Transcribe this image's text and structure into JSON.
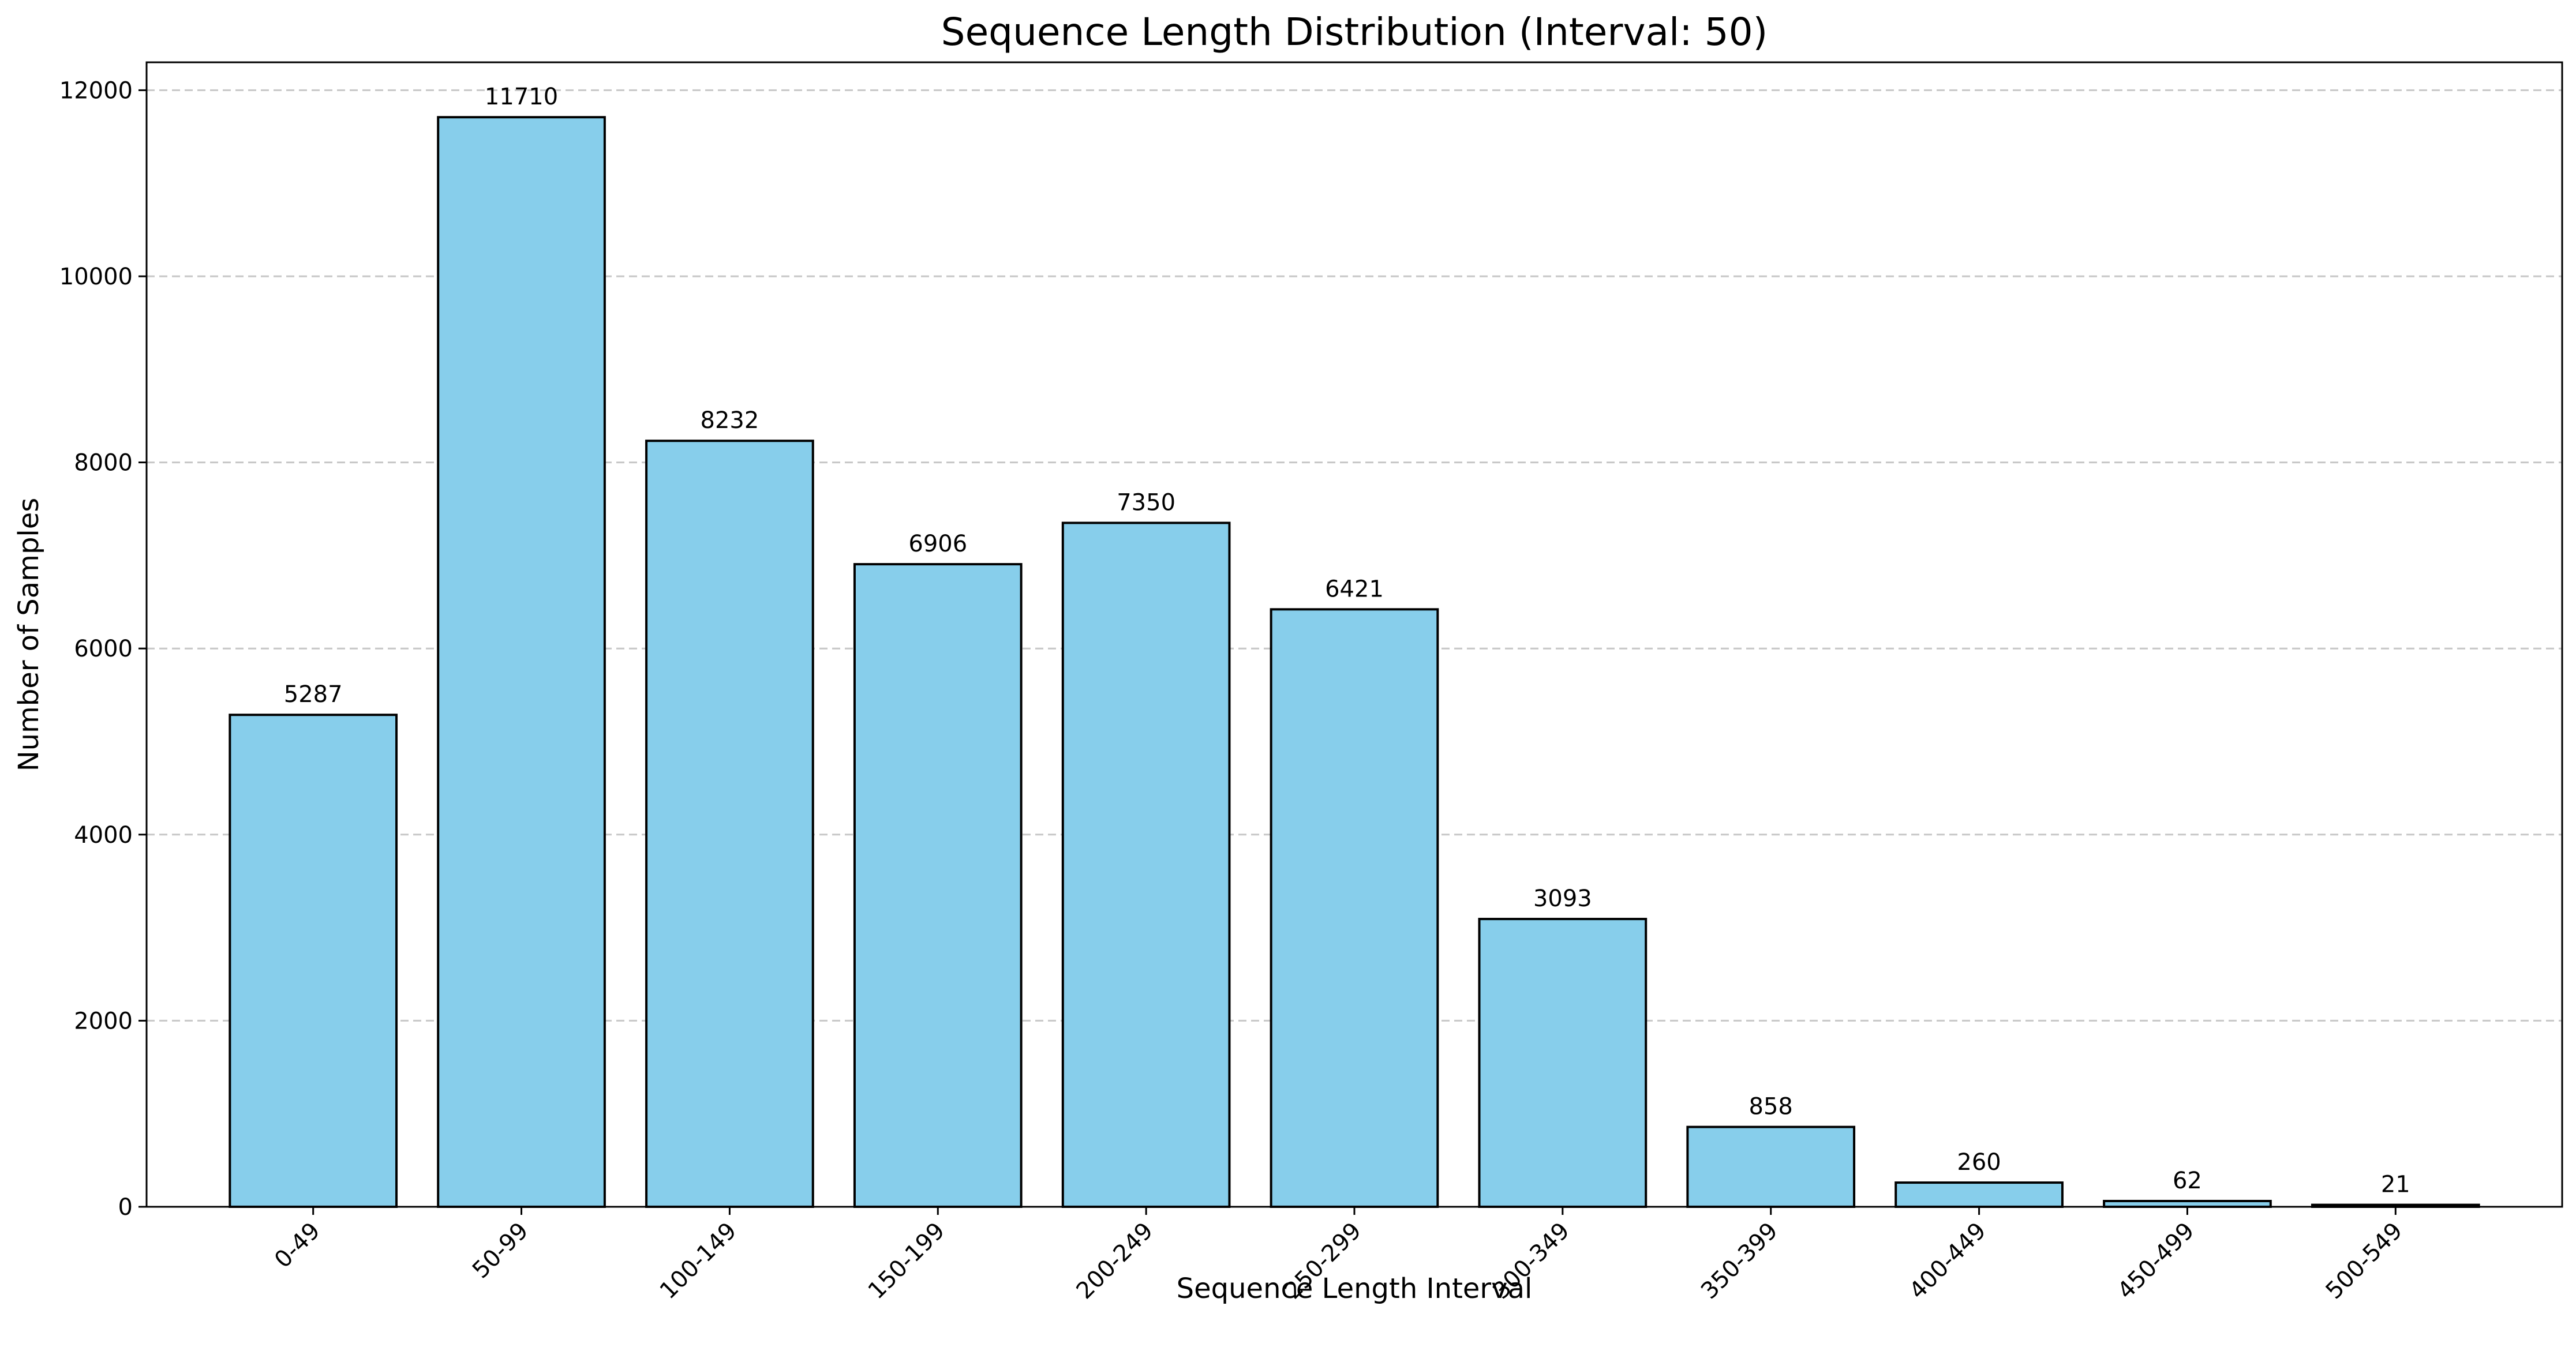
{
  "chart_data": {
    "type": "bar",
    "title": "Sequence Length Distribution (Interval: 50)",
    "xlabel": "Sequence Length Interval",
    "ylabel": "Number of Samples",
    "categories": [
      "0-49",
      "50-99",
      "100-149",
      "150-199",
      "200-249",
      "250-299",
      "300-349",
      "350-399",
      "400-449",
      "450-499",
      "500-549"
    ],
    "values": [
      5287,
      11710,
      8232,
      6906,
      7350,
      6421,
      3093,
      858,
      260,
      62,
      21
    ],
    "data_labels": [
      "5287",
      "11710",
      "8232",
      "6906",
      "7350",
      "6421",
      "3093",
      "858",
      "260",
      "62",
      "21"
    ],
    "ylim": [
      0,
      12300
    ],
    "yticks": [
      0,
      2000,
      4000,
      6000,
      8000,
      10000,
      12000
    ],
    "ytick_labels": [
      "0",
      "2000",
      "4000",
      "6000",
      "8000",
      "10000",
      "12000"
    ],
    "grid": "y-axis, dashed",
    "legend": "none",
    "colors": {
      "bar_fill": "#87CEEB",
      "bar_edge": "#000000",
      "grid": "#b0b0b0",
      "text": "#000000"
    }
  }
}
